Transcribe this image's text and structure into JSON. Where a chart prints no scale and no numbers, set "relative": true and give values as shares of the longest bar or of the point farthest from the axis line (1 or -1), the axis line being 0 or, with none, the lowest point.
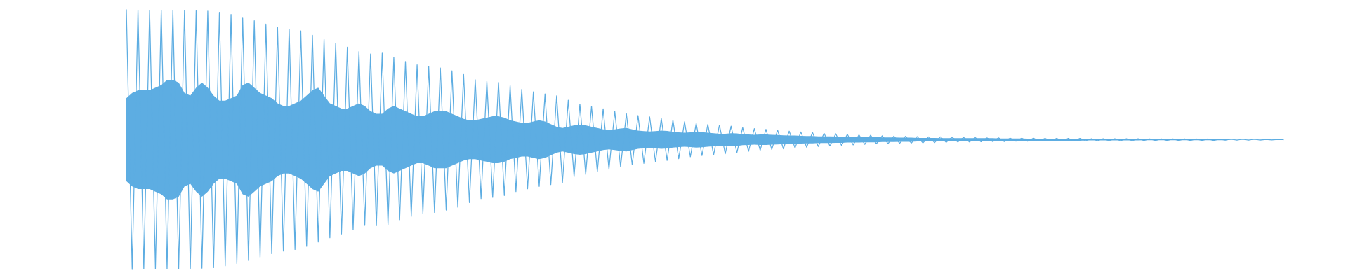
{
  "chart_data": {
    "type": "line",
    "relative": true,
    "line_style": "solid",
    "categories": [
      null,
      null,
      null,
      null,
      null,
      null,
      null,
      null,
      null,
      null,
      null,
      null,
      null,
      null,
      null,
      null,
      null,
      null,
      null,
      null,
      null,
      null,
      null,
      null,
      null,
      null,
      null,
      null,
      null,
      null,
      null,
      null,
      null,
      null,
      null,
      null,
      null,
      null,
      null,
      null,
      null,
      null,
      null,
      null,
      null,
      null,
      null,
      null,
      null,
      null,
      null,
      null,
      null,
      null,
      null,
      null,
      null,
      null,
      null,
      null,
      null,
      null,
      null,
      null,
      null,
      null,
      null,
      null,
      null,
      null,
      null,
      null,
      null,
      null,
      null,
      null,
      null,
      null,
      null,
      null,
      null,
      null,
      null,
      null,
      null,
      null,
      null,
      null,
      null,
      null,
      null,
      null,
      null,
      null,
      null,
      null,
      null,
      null,
      null,
      null,
      null,
      null,
      null,
      null,
      null,
      null,
      null,
      null,
      null,
      null,
      null,
      null,
      null,
      null,
      null,
      null,
      null,
      null,
      null,
      null,
      null,
      null,
      null,
      null,
      null,
      null,
      null,
      null,
      null,
      null,
      null,
      null,
      null,
      null,
      null,
      null,
      null,
      null,
      null,
      null,
      null,
      null,
      null,
      null,
      null,
      null,
      null,
      null,
      null,
      null,
      null,
      null,
      null,
      null,
      null,
      null,
      null,
      null,
      null,
      null,
      null,
      null,
      null,
      null,
      null,
      null,
      null,
      null,
      null,
      null,
      null,
      null,
      null,
      null,
      null,
      null,
      null,
      null,
      null,
      null,
      null,
      null,
      null,
      null,
      null,
      null,
      null,
      null,
      null,
      null,
      null,
      null,
      null,
      null,
      null,
      null,
      null,
      null,
      null,
      null
    ],
    "series": [
      {
        "color": "#5dade2",
        "values": [
          1.0,
          0.0,
          0.999,
          0.002,
          0.998,
          0.002,
          0.997,
          0.003,
          0.997,
          0.003,
          0.997,
          0.004,
          0.996,
          0.005,
          0.995,
          0.007,
          0.99,
          0.014,
          0.982,
          0.023,
          0.971,
          0.035,
          0.958,
          0.048,
          0.945,
          0.061,
          0.933,
          0.071,
          0.926,
          0.077,
          0.919,
          0.089,
          0.902,
          0.106,
          0.886,
          0.122,
          0.871,
          0.137,
          0.856,
          0.153,
          0.839,
          0.17,
          0.83,
          0.169,
          0.833,
          0.173,
          0.817,
          0.192,
          0.801,
          0.205,
          0.788,
          0.216,
          0.782,
          0.22,
          0.776,
          0.229,
          0.765,
          0.24,
          0.751,
          0.258,
          0.731,
          0.273,
          0.724,
          0.278,
          0.72,
          0.285,
          0.708,
          0.3,
          0.694,
          0.311,
          0.684,
          0.32,
          0.676,
          0.327,
          0.669,
          0.335,
          0.652,
          0.358,
          0.637,
          0.367,
          0.629,
          0.376,
          0.619,
          0.386,
          0.609,
          0.396,
          0.6,
          0.403,
          0.593,
          0.409,
          0.588,
          0.415,
          0.582,
          0.42,
          0.576,
          0.427,
          0.569,
          0.434,
          0.563,
          0.439,
          0.559,
          0.442,
          0.556,
          0.446,
          0.552,
          0.45,
          0.547,
          0.455,
          0.543,
          0.459,
          0.54,
          0.462,
          0.537,
          0.465,
          0.533,
          0.468,
          0.53,
          0.471,
          0.528,
          0.474,
          0.525,
          0.476,
          0.523,
          0.478,
          0.521,
          0.48,
          0.519,
          0.482,
          0.517,
          0.484,
          0.515,
          0.485,
          0.514,
          0.486,
          0.513,
          0.487,
          0.512,
          0.488,
          0.511,
          0.489,
          0.511,
          0.49,
          0.51,
          0.491,
          0.509,
          0.491,
          0.508,
          0.492,
          0.507,
          0.493,
          0.507,
          0.493,
          0.506,
          0.494,
          0.506,
          0.494,
          0.506,
          0.495,
          0.505,
          0.495,
          0.505,
          0.495,
          0.505,
          0.495,
          0.505,
          0.496,
          0.504,
          0.496,
          0.504,
          0.496,
          0.504,
          0.496,
          0.504,
          0.496,
          0.504,
          0.497,
          0.503,
          0.497,
          0.503,
          0.497,
          0.503,
          0.497,
          0.503,
          0.497,
          0.503,
          0.497,
          0.503,
          0.497,
          0.502,
          0.498,
          0.502,
          0.498,
          0.502,
          0.498,
          0.502,
          0.498,
          0.501,
          0.499,
          0.501,
          0.5
        ],
        "upper": [
          0.66,
          0.68,
          0.69,
          0.69,
          0.69,
          0.7,
          0.71,
          0.73,
          0.73,
          0.72,
          0.68,
          0.67,
          0.7,
          0.72,
          0.7,
          0.67,
          0.65,
          0.65,
          0.66,
          0.67,
          0.71,
          0.72,
          0.7,
          0.68,
          0.67,
          0.66,
          0.64,
          0.63,
          0.63,
          0.64,
          0.65,
          0.67,
          0.69,
          0.7,
          0.67,
          0.64,
          0.63,
          0.62,
          0.62,
          0.63,
          0.64,
          0.63,
          0.61,
          0.6,
          0.6,
          0.62,
          0.63,
          0.62,
          0.61,
          0.6,
          0.59,
          0.59,
          0.6,
          0.61,
          0.61,
          0.61,
          0.6,
          0.59,
          0.58,
          0.575,
          0.575,
          0.58,
          0.585,
          0.59,
          0.59,
          0.585,
          0.575,
          0.57,
          0.565,
          0.565,
          0.57,
          0.575,
          0.57,
          0.56,
          0.55,
          0.545,
          0.55,
          0.555,
          0.558,
          0.555,
          0.55,
          0.545,
          0.54,
          0.537,
          0.54,
          0.543,
          0.545,
          0.54,
          0.535,
          0.533,
          0.532,
          0.533,
          0.535,
          0.534,
          0.53,
          0.528,
          0.527,
          0.528,
          0.53,
          0.529,
          0.527,
          0.525,
          0.523,
          0.523,
          0.525,
          0.524,
          0.521,
          0.52,
          0.519,
          0.52,
          0.52,
          0.519,
          0.518,
          0.517,
          0.516,
          0.516,
          0.515,
          0.514,
          0.514,
          0.513,
          0.513,
          0.513,
          0.512,
          0.512,
          0.511,
          0.511,
          0.511,
          0.51,
          0.51,
          0.51,
          0.509,
          0.509,
          0.509,
          0.508,
          0.508,
          0.508,
          0.507,
          0.507,
          0.507,
          0.507,
          0.506,
          0.506,
          0.506,
          0.506,
          0.506,
          0.506,
          0.506,
          0.506,
          0.506,
          0.506,
          0.505,
          0.505,
          0.505,
          0.505,
          0.505,
          0.504,
          0.504,
          0.504,
          0.504,
          0.504,
          0.504,
          0.504,
          0.504,
          0.504,
          0.504,
          0.503,
          0.503,
          0.503,
          0.503,
          0.503,
          0.503,
          0.503,
          0.503,
          0.503,
          0.503,
          0.502,
          0.502,
          0.502,
          0.502,
          0.502,
          0.502,
          0.502,
          0.502,
          0.502,
          0.502,
          0.502,
          0.502,
          0.502,
          0.502,
          0.502,
          0.501,
          0.501,
          0.501,
          0.501,
          0.501,
          0.501,
          0.501,
          0.501,
          0.501,
          0.501
        ],
        "lower": [
          0.34,
          0.32,
          0.31,
          0.31,
          0.31,
          0.3,
          0.29,
          0.27,
          0.27,
          0.28,
          0.32,
          0.33,
          0.3,
          0.28,
          0.3,
          0.33,
          0.35,
          0.35,
          0.34,
          0.33,
          0.29,
          0.28,
          0.3,
          0.32,
          0.33,
          0.34,
          0.36,
          0.37,
          0.37,
          0.36,
          0.35,
          0.33,
          0.31,
          0.3,
          0.33,
          0.36,
          0.37,
          0.38,
          0.38,
          0.37,
          0.36,
          0.37,
          0.39,
          0.4,
          0.4,
          0.38,
          0.37,
          0.38,
          0.39,
          0.4,
          0.41,
          0.41,
          0.4,
          0.39,
          0.39,
          0.39,
          0.4,
          0.41,
          0.42,
          0.425,
          0.425,
          0.42,
          0.415,
          0.41,
          0.41,
          0.415,
          0.425,
          0.43,
          0.435,
          0.435,
          0.43,
          0.425,
          0.43,
          0.44,
          0.45,
          0.455,
          0.45,
          0.445,
          0.442,
          0.445,
          0.45,
          0.455,
          0.46,
          0.463,
          0.46,
          0.457,
          0.455,
          0.46,
          0.465,
          0.467,
          0.468,
          0.467,
          0.465,
          0.466,
          0.47,
          0.472,
          0.473,
          0.472,
          0.47,
          0.471,
          0.473,
          0.475,
          0.477,
          0.477,
          0.475,
          0.476,
          0.479,
          0.48,
          0.481,
          0.48,
          0.48,
          0.481,
          0.482,
          0.483,
          0.484,
          0.484,
          0.485,
          0.486,
          0.486,
          0.487,
          0.487,
          0.487,
          0.488,
          0.488,
          0.489,
          0.489,
          0.489,
          0.49,
          0.49,
          0.49,
          0.491,
          0.491,
          0.491,
          0.492,
          0.492,
          0.492,
          0.493,
          0.493,
          0.493,
          0.493,
          0.494,
          0.494,
          0.494,
          0.494,
          0.494,
          0.494,
          0.494,
          0.494,
          0.494,
          0.494,
          0.495,
          0.495,
          0.495,
          0.495,
          0.495,
          0.496,
          0.496,
          0.496,
          0.496,
          0.496,
          0.496,
          0.496,
          0.496,
          0.496,
          0.496,
          0.497,
          0.497,
          0.497,
          0.497,
          0.497,
          0.497,
          0.497,
          0.497,
          0.497,
          0.497,
          0.498,
          0.498,
          0.498,
          0.498,
          0.498,
          0.498,
          0.498,
          0.498,
          0.498,
          0.498,
          0.498,
          0.498,
          0.498,
          0.498,
          0.498,
          0.499,
          0.499,
          0.499,
          0.499,
          0.499,
          0.499,
          0.499,
          0.499,
          0.499,
          0.499
        ]
      }
    ]
  }
}
